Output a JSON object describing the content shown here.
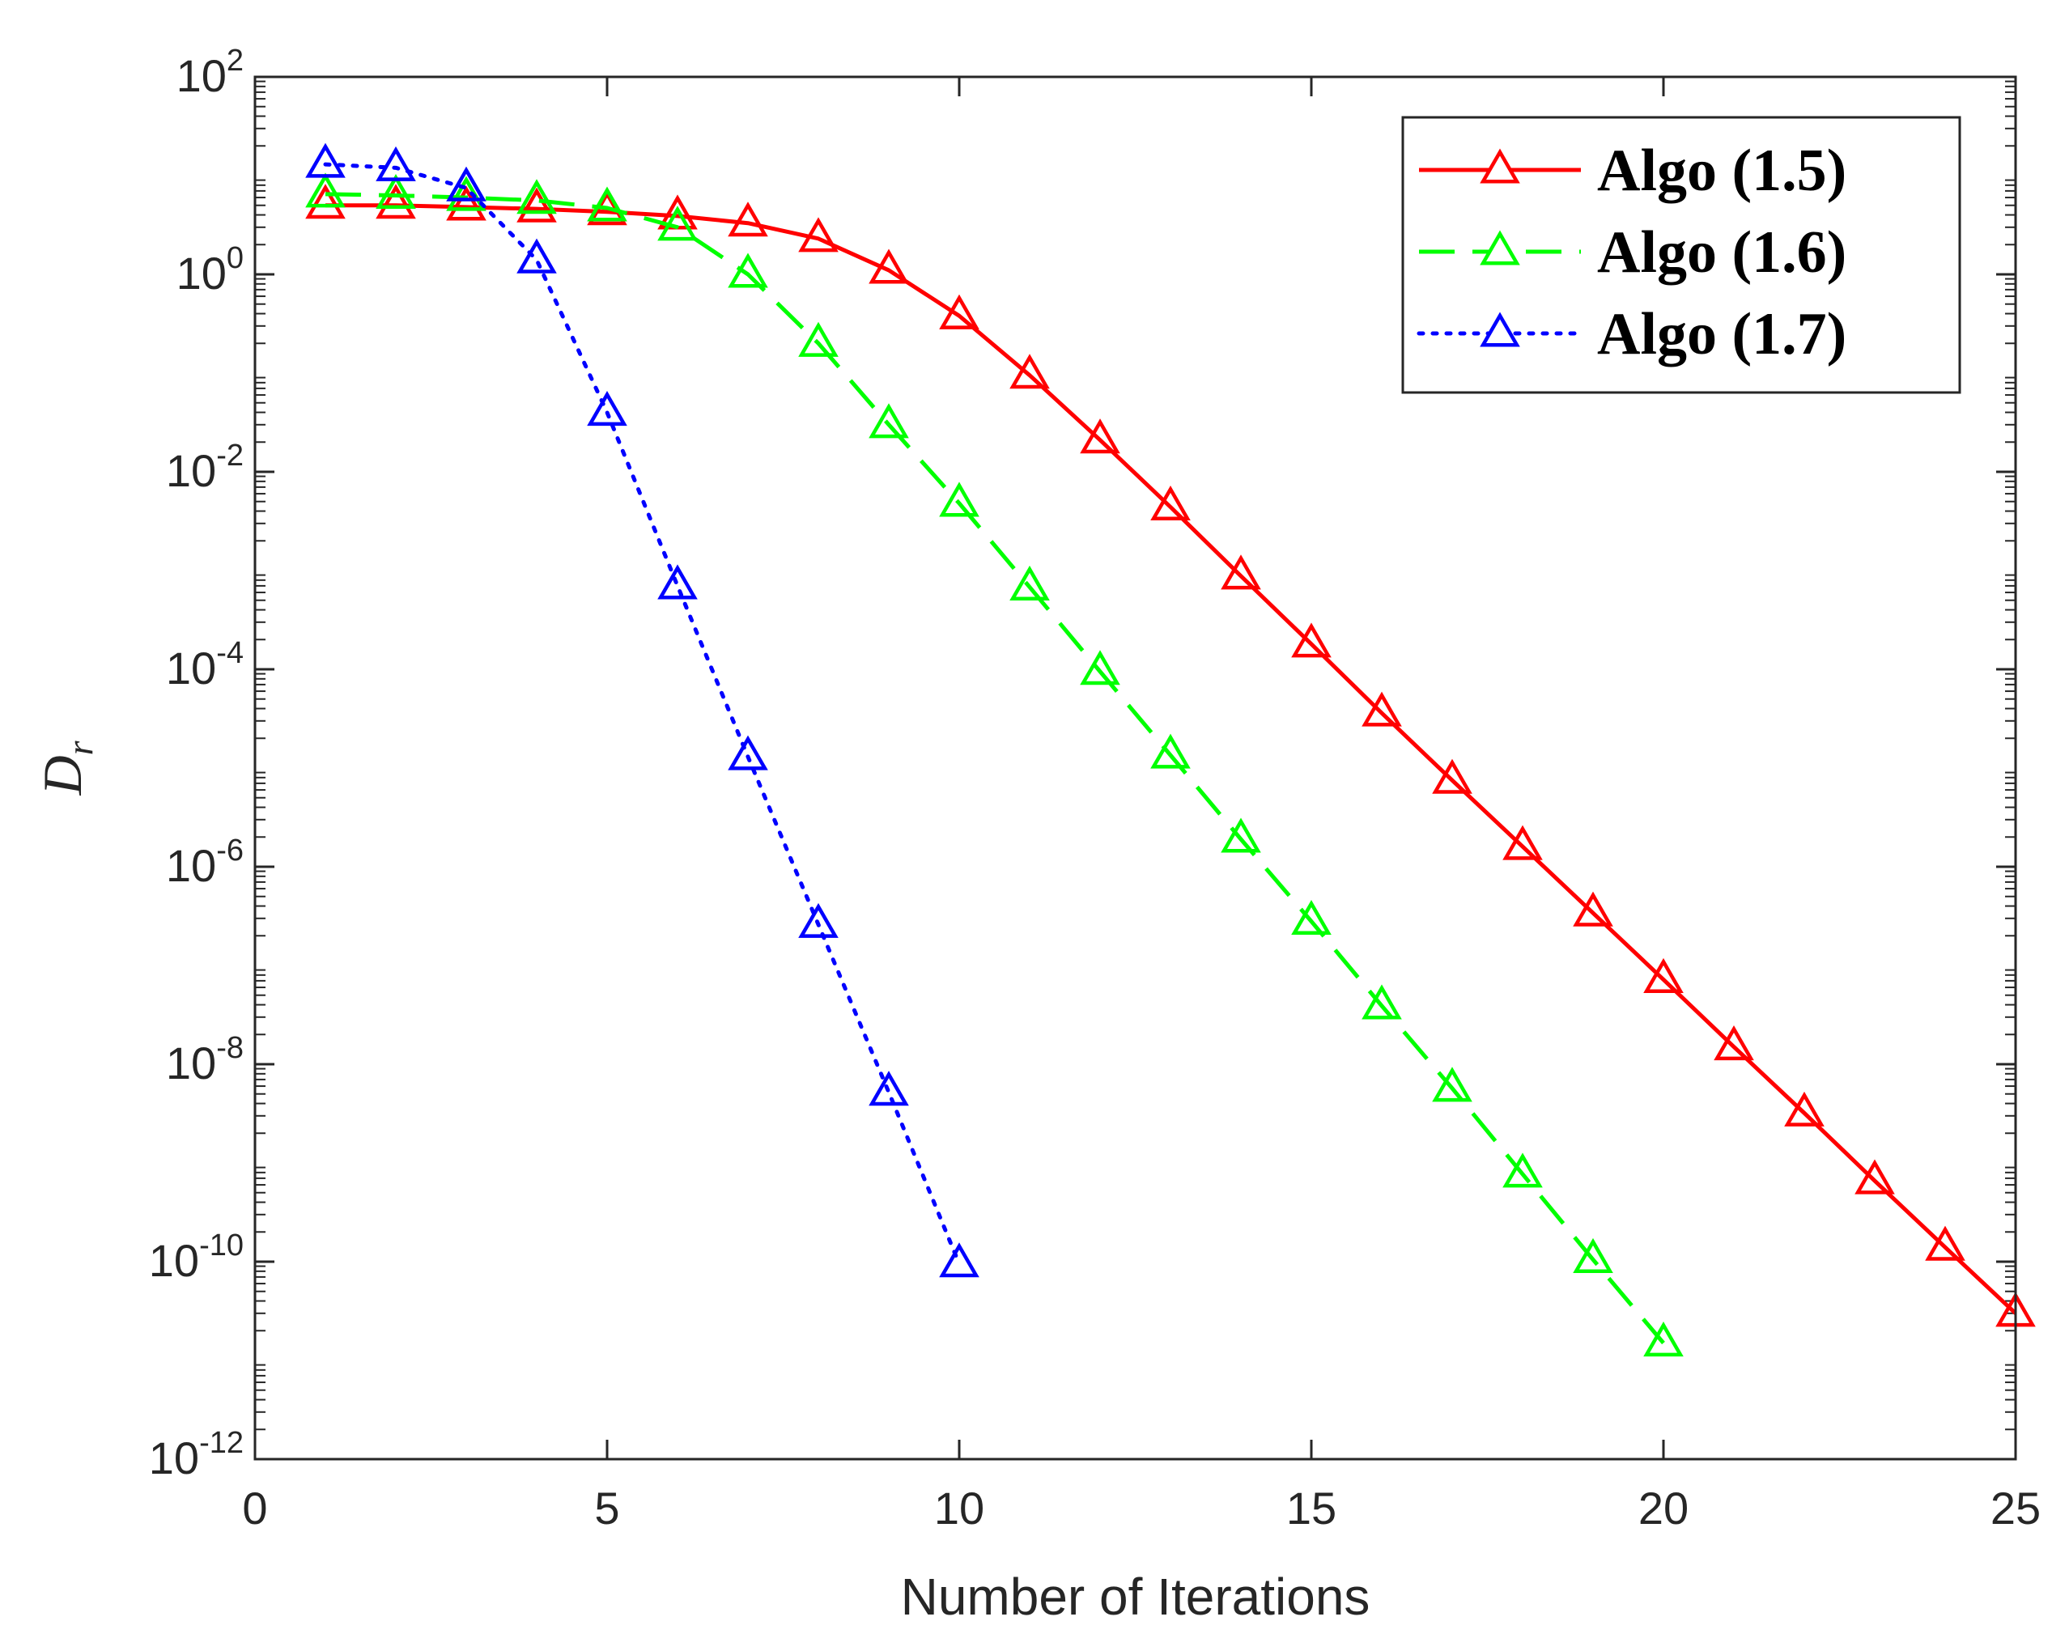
{
  "chart_data": {
    "type": "line",
    "title": "",
    "xlabel": "Number of Iterations",
    "ylabel": {
      "base": "D",
      "subscript": "r"
    },
    "yscale": "log",
    "xlim": [
      0,
      25
    ],
    "ylim": [
      1e-12,
      100
    ],
    "xticks": [
      0,
      5,
      10,
      15,
      20,
      25
    ],
    "xtick_labels": [
      "0",
      "5",
      "10",
      "15",
      "20",
      "25"
    ],
    "yticks": [
      1e-12,
      1e-10,
      1e-08,
      1e-06,
      0.0001,
      0.01,
      1,
      100
    ],
    "ytick_labels": [
      {
        "base": "10",
        "exp": "-12"
      },
      {
        "base": "10",
        "exp": "-10"
      },
      {
        "base": "10",
        "exp": "-8"
      },
      {
        "base": "10",
        "exp": "-6"
      },
      {
        "base": "10",
        "exp": "-4"
      },
      {
        "base": "10",
        "exp": "-2"
      },
      {
        "base": "10",
        "exp": "0"
      },
      {
        "base": "10",
        "exp": "2"
      }
    ],
    "grid": false,
    "legend_position": "top-right",
    "series": [
      {
        "name": "Algo (1.5)",
        "color": "#ff0000",
        "line_style": "solid",
        "marker": "triangle",
        "x": [
          1,
          2,
          3,
          4,
          5,
          6,
          7,
          8,
          9,
          10,
          11,
          12,
          13,
          14,
          15,
          16,
          17,
          18,
          19,
          20,
          21,
          22,
          23,
          24,
          25
        ],
        "values": [
          5.0,
          5.0,
          4.8,
          4.6,
          4.3,
          3.9,
          3.3,
          2.3,
          1.1,
          0.38,
          0.095,
          0.021,
          0.0044,
          0.00088,
          0.00018,
          3.6e-05,
          7.5e-06,
          1.6e-06,
          3.4e-07,
          7.2e-08,
          1.5e-08,
          3.2e-09,
          6.6e-10,
          1.4e-10,
          3e-11
        ]
      },
      {
        "name": "Algo (1.6)",
        "color": "#00ff00",
        "line_style": "dashed",
        "marker": "triangle",
        "x": [
          1,
          2,
          3,
          4,
          5,
          6,
          7,
          8,
          9,
          10,
          11,
          12,
          13,
          14,
          15,
          16,
          17,
          18,
          19,
          20
        ],
        "values": [
          6.5,
          6.3,
          6.0,
          5.6,
          4.7,
          3.0,
          1.0,
          0.2,
          0.03,
          0.0048,
          0.00068,
          9.5e-05,
          1.35e-05,
          1.9e-06,
          2.8e-07,
          3.9e-08,
          5.7e-09,
          7.7e-10,
          1.05e-10,
          1.5e-11
        ]
      },
      {
        "name": "Algo (1.7)",
        "color": "#0000ff",
        "line_style": "dotted",
        "marker": "triangle",
        "x": [
          1,
          2,
          3,
          4,
          5,
          6,
          7,
          8,
          9,
          10
        ],
        "values": [
          13.0,
          12.0,
          7.5,
          1.4,
          0.04,
          0.0007,
          1.3e-05,
          2.6e-07,
          5.2e-09,
          9.5e-11
        ]
      }
    ]
  }
}
